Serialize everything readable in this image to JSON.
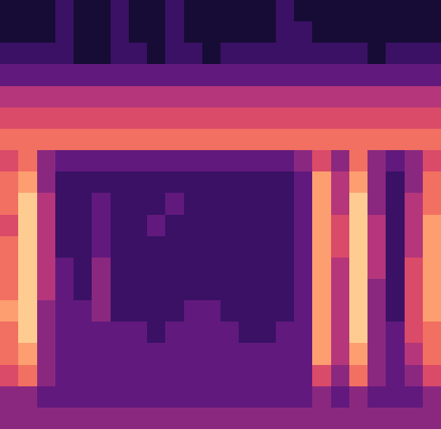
{
  "chart_data": {
    "type": "heatmap",
    "tick_labels": false,
    "zlim": [
      0,
      10
    ],
    "values": [
      [
        1,
        1,
        1,
        2,
        1,
        1,
        2,
        1,
        1,
        2,
        1,
        1,
        1,
        1,
        1,
        2,
        1,
        1,
        1,
        1,
        1,
        1,
        1,
        1
      ],
      [
        1,
        1,
        1,
        2,
        1,
        1,
        2,
        1,
        1,
        2,
        1,
        1,
        1,
        1,
        1,
        2,
        2,
        1,
        1,
        1,
        1,
        1,
        1,
        1
      ],
      [
        2,
        2,
        2,
        2,
        1,
        1,
        2,
        2,
        1,
        2,
        2,
        1,
        2,
        2,
        2,
        2,
        2,
        2,
        2,
        2,
        1,
        2,
        2,
        2
      ],
      [
        3,
        3,
        3,
        3,
        3,
        3,
        3,
        3,
        3,
        3,
        3,
        3,
        3,
        3,
        3,
        3,
        3,
        3,
        3,
        3,
        3,
        3,
        3,
        3
      ],
      [
        5,
        5,
        5,
        5,
        5,
        5,
        5,
        5,
        5,
        5,
        5,
        5,
        5,
        5,
        5,
        5,
        5,
        5,
        5,
        5,
        5,
        5,
        5,
        5
      ],
      [
        6,
        6,
        6,
        6,
        6,
        6,
        6,
        6,
        6,
        6,
        6,
        6,
        6,
        6,
        6,
        6,
        6,
        6,
        6,
        6,
        6,
        6,
        6,
        6
      ],
      [
        7,
        7,
        7,
        7,
        7,
        7,
        7,
        7,
        7,
        7,
        7,
        7,
        7,
        7,
        7,
        7,
        7,
        7,
        7,
        7,
        7,
        7,
        7,
        7
      ],
      [
        6,
        7,
        4,
        3,
        3,
        3,
        3,
        3,
        3,
        3,
        3,
        3,
        3,
        3,
        3,
        3,
        4,
        6,
        4,
        7,
        4,
        3,
        4,
        6
      ],
      [
        7,
        8,
        4,
        2,
        2,
        2,
        2,
        2,
        2,
        2,
        2,
        2,
        2,
        2,
        2,
        2,
        3,
        8,
        5,
        8,
        4,
        2,
        4,
        7
      ],
      [
        7,
        9,
        5,
        2,
        2,
        3,
        2,
        2,
        2,
        3,
        2,
        2,
        2,
        2,
        2,
        2,
        3,
        8,
        5,
        9,
        4,
        2,
        5,
        7
      ],
      [
        6,
        9,
        5,
        2,
        2,
        3,
        2,
        2,
        3,
        2,
        2,
        2,
        2,
        2,
        2,
        2,
        3,
        8,
        6,
        9,
        5,
        2,
        5,
        8
      ],
      [
        7,
        9,
        5,
        2,
        2,
        3,
        2,
        2,
        2,
        2,
        2,
        2,
        2,
        2,
        2,
        2,
        3,
        8,
        6,
        9,
        5,
        2,
        5,
        8
      ],
      [
        7,
        9,
        5,
        3,
        2,
        4,
        2,
        2,
        2,
        2,
        2,
        2,
        2,
        2,
        2,
        2,
        3,
        8,
        5,
        9,
        5,
        2,
        6,
        8
      ],
      [
        7,
        9,
        5,
        3,
        2,
        4,
        2,
        2,
        2,
        2,
        2,
        2,
        2,
        2,
        2,
        2,
        3,
        8,
        5,
        9,
        4,
        2,
        6,
        8
      ],
      [
        8,
        9,
        4,
        3,
        3,
        4,
        2,
        2,
        2,
        2,
        3,
        3,
        2,
        2,
        2,
        2,
        3,
        8,
        5,
        9,
        4,
        2,
        6,
        8
      ],
      [
        7,
        9,
        4,
        3,
        3,
        3,
        3,
        3,
        2,
        3,
        3,
        3,
        3,
        2,
        2,
        3,
        3,
        8,
        5,
        9,
        4,
        3,
        6,
        7
      ],
      [
        7,
        8,
        4,
        3,
        3,
        3,
        3,
        3,
        3,
        3,
        3,
        3,
        3,
        3,
        3,
        3,
        3,
        8,
        5,
        8,
        4,
        3,
        5,
        7
      ],
      [
        6,
        7,
        4,
        3,
        3,
        3,
        3,
        3,
        3,
        3,
        3,
        3,
        3,
        3,
        3,
        3,
        3,
        6,
        4,
        7,
        4,
        3,
        4,
        6
      ],
      [
        4,
        4,
        3,
        3,
        3,
        3,
        3,
        3,
        3,
        3,
        3,
        3,
        3,
        3,
        3,
        3,
        3,
        4,
        3,
        4,
        3,
        3,
        3,
        4
      ],
      [
        4,
        4,
        4,
        4,
        4,
        4,
        4,
        4,
        4,
        4,
        4,
        4,
        4,
        4,
        4,
        4,
        4,
        4,
        4,
        4,
        4,
        4,
        4,
        4
      ]
    ]
  }
}
